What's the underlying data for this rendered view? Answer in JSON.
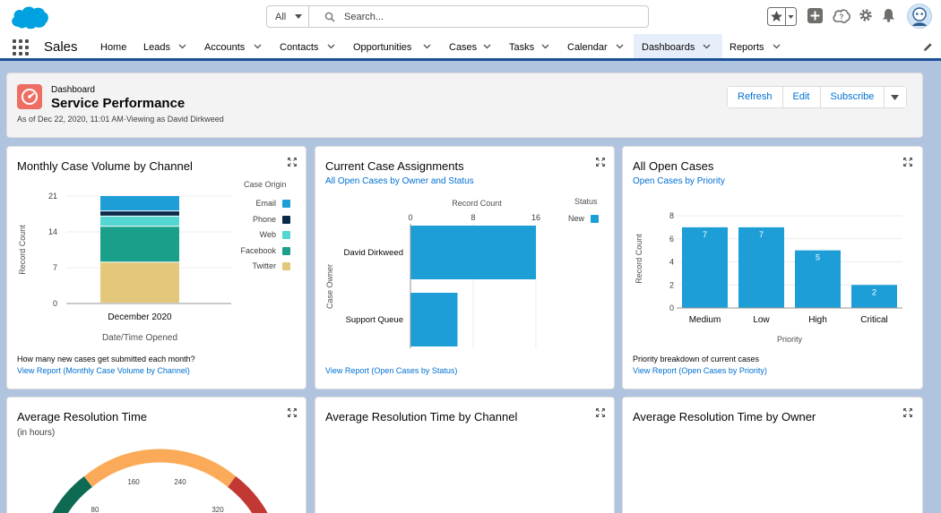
{
  "header": {
    "search": {
      "scope": "All",
      "placeholder": "Search..."
    },
    "app_name": "Sales"
  },
  "nav": {
    "items": [
      {
        "label": "Home",
        "dropdown": false
      },
      {
        "label": "Leads",
        "dropdown": true
      },
      {
        "label": "Accounts",
        "dropdown": true
      },
      {
        "label": "Contacts",
        "dropdown": true
      },
      {
        "label": "Opportunities",
        "dropdown": true
      },
      {
        "label": "Cases",
        "dropdown": true
      },
      {
        "label": "Tasks",
        "dropdown": true
      },
      {
        "label": "Calendar",
        "dropdown": true
      },
      {
        "label": "Dashboards",
        "dropdown": true,
        "active": true
      },
      {
        "label": "Reports",
        "dropdown": true
      }
    ]
  },
  "dashboard": {
    "type_label": "Dashboard",
    "title": "Service Performance",
    "meta": "As of Dec 22, 2020, 11:01 AM·Viewing as David Dirkweed",
    "buttons": {
      "refresh": "Refresh",
      "edit": "Edit",
      "subscribe": "Subscribe"
    }
  },
  "cards": {
    "monthly": {
      "title": "Monthly Case Volume by Channel",
      "description": "How many new cases get submitted each month?",
      "link": "View Report (Monthly Case Volume by Channel)"
    },
    "assignments": {
      "title": "Current Case Assignments",
      "subtitle": "All Open Cases by Owner and Status",
      "link": "View Report (Open Cases by Status)"
    },
    "open_cases": {
      "title": "All Open Cases",
      "subtitle": "Open Cases by Priority",
      "description": "Priority breakdown of current cases",
      "link": "View Report (Open Cases by Priority)"
    },
    "avg_resolution": {
      "title": "Average Resolution Time",
      "subtitle": "(in hours)"
    },
    "avg_by_channel": {
      "title": "Average Resolution Time by Channel"
    },
    "avg_by_owner": {
      "title": "Average Resolution Time by Owner"
    }
  },
  "colors": {
    "brand_blue": "#00a1e0",
    "link_blue": "#0070d2",
    "nav_underline": "#1b5297",
    "dashboard_icon": "#ef6e64"
  },
  "chart_data": [
    {
      "id": "monthly",
      "type": "bar",
      "stacked": true,
      "categories": [
        "December 2020"
      ],
      "series": [
        {
          "name": "Twitter",
          "values": [
            8
          ],
          "color": "#e3c87b"
        },
        {
          "name": "Facebook",
          "values": [
            7
          ],
          "color": "#1a9f8b"
        },
        {
          "name": "Web",
          "values": [
            2
          ],
          "color": "#54d6d2"
        },
        {
          "name": "Phone",
          "values": [
            1
          ],
          "color": "#0b2a4b"
        },
        {
          "name": "Email",
          "values": [
            3
          ],
          "color": "#1e9ed7"
        }
      ],
      "xlabel": "Date/Time Opened",
      "ylabel": "Record Count",
      "legend_title": "Case Origin",
      "legend_order": [
        "Email",
        "Phone",
        "Web",
        "Facebook",
        "Twitter"
      ],
      "yticks": [
        0,
        7,
        14,
        21
      ],
      "ylim": [
        0,
        21
      ],
      "legend_position": "right"
    },
    {
      "id": "assignments",
      "type": "bar",
      "orientation": "horizontal",
      "categories": [
        "David Dirkweed",
        "Support Queue"
      ],
      "series": [
        {
          "name": "New",
          "values": [
            16,
            6
          ],
          "color": "#1e9ed7"
        }
      ],
      "xlabel": "Record Count",
      "ylabel": "Case Owner",
      "legend_title": "Status",
      "xticks": [
        0,
        8,
        16
      ],
      "xlim": [
        0,
        16
      ],
      "legend_position": "right"
    },
    {
      "id": "open_cases",
      "type": "bar",
      "categories": [
        "Medium",
        "Low",
        "High",
        "Critical"
      ],
      "series": [
        {
          "values": [
            7,
            7,
            5,
            2
          ],
          "color": "#1e9ed7"
        }
      ],
      "data_labels": [
        "7",
        "7",
        "5",
        "2"
      ],
      "xlabel": "Priority",
      "ylabel": "Record Count",
      "yticks": [
        0,
        2,
        4,
        6,
        8
      ],
      "ylim": [
        0,
        8
      ]
    },
    {
      "id": "avg_resolution",
      "type": "gauge",
      "tick_labels": [
        "80",
        "160",
        "240",
        "320"
      ]
    }
  ]
}
